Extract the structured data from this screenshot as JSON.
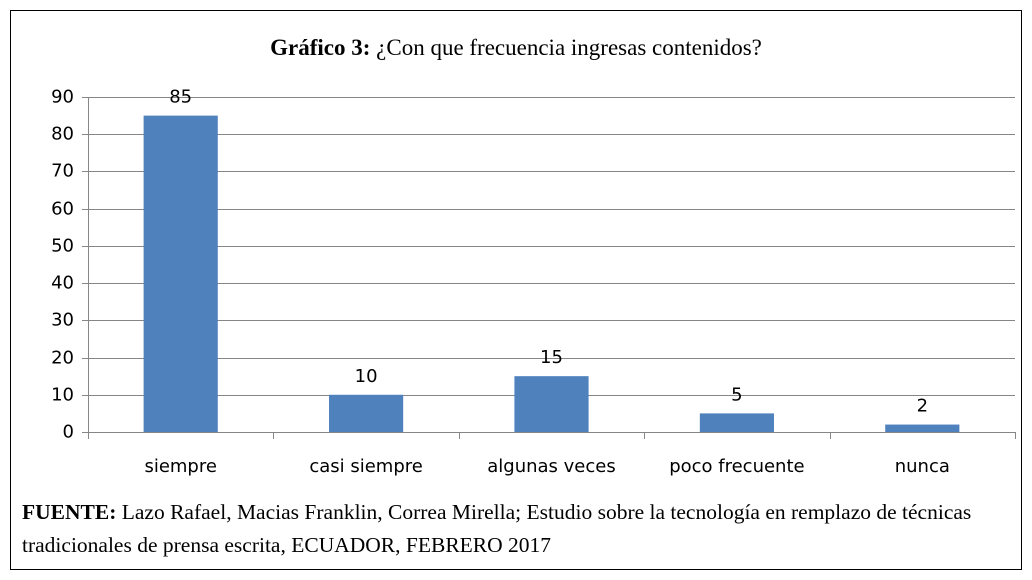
{
  "chart_data": {
    "type": "bar",
    "title_label": "Gráfico 3:",
    "title": "¿Con que frecuencia ingresas contenidos?",
    "categories": [
      "siempre",
      "casi siempre",
      "algunas veces",
      "poco frecuente",
      "nunca"
    ],
    "values": [
      85,
      10,
      15,
      5,
      2
    ],
    "color": "#4f81bd",
    "ylim": [
      0,
      90
    ],
    "yticks": [
      0,
      10,
      20,
      30,
      40,
      50,
      60,
      70,
      80,
      90
    ],
    "grid": true,
    "source_label": "FUENTE:",
    "source": "Lazo Rafael, Macias Franklin, Correa Mirella; Estudio sobre la tecnología en remplazo de técnicas tradicionales de prensa escrita, ECUADOR, FEBRERO 2017"
  }
}
